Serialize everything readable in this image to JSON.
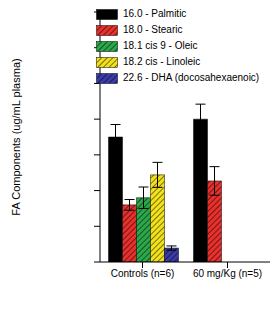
{
  "chart_data": {
    "type": "bar",
    "y_label": "FA Components (ug/mL plasma)",
    "categories": [
      "Controls (n=6)",
      "60 mg/Kg (n=5)"
    ],
    "series": [
      {
        "name": "16.0 - Palmitic",
        "color": "#000000",
        "values": [
          35,
          40
        ],
        "errors": [
          3.5,
          4.2
        ]
      },
      {
        "name": "18.0 - Stearic",
        "color": "#e8302c",
        "values": [
          16,
          22.7
        ],
        "errors": [
          1.5,
          4
        ]
      },
      {
        "name": "18.1 cis 9 - Oleic",
        "color": "#2aa84a",
        "values": [
          18,
          null
        ],
        "errors": [
          3,
          null
        ]
      },
      {
        "name": "18.2 cis - Linoleic",
        "color": "#f2e21c",
        "values": [
          24.4,
          null
        ],
        "errors": [
          3.5,
          null
        ]
      },
      {
        "name": "22.6 - DHA (docosahexaenoic)",
        "color": "#3a3aa8",
        "values": [
          3.9,
          null
        ],
        "errors": [
          0.6,
          null
        ]
      }
    ],
    "ylim": [
      0,
      70
    ],
    "yticks": [
      0,
      10,
      20,
      30,
      40,
      50,
      60,
      70
    ],
    "tick_labels": "x",
    "legend": "upper left"
  }
}
